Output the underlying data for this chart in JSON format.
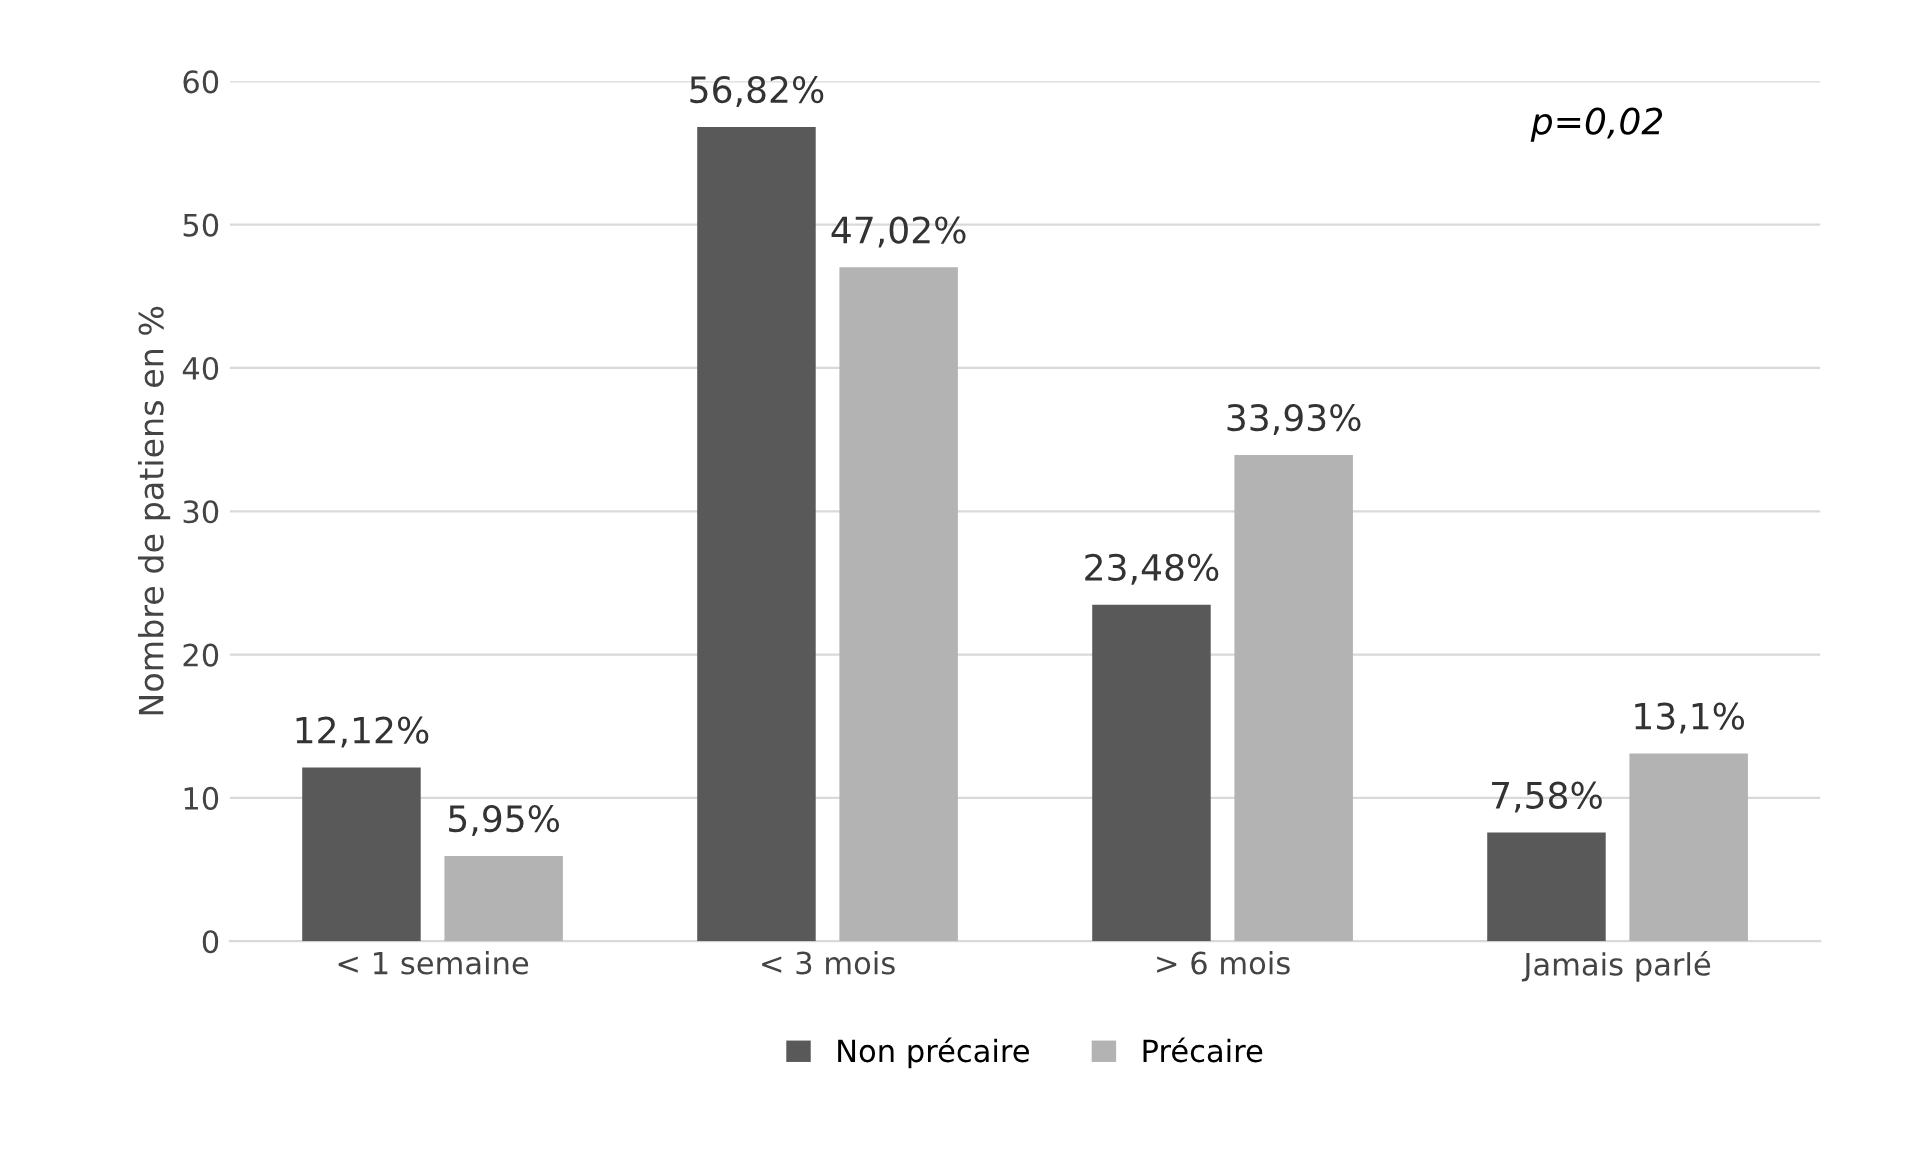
{
  "chart_data": {
    "type": "bar",
    "ylabel": "Nombre de patiens en %",
    "categories": [
      "< 1 semaine",
      "< 3 mois",
      "> 6 mois",
      "Jamais parlé"
    ],
    "series": [
      {
        "name": "Non précaire",
        "color": "#595959",
        "values": [
          12.12,
          56.82,
          23.48,
          7.58
        ],
        "value_labels": [
          "12,12%",
          "56,82%",
          "23,48%",
          "7,58%"
        ]
      },
      {
        "name": "Précaire",
        "color": "#b3b3b3",
        "values": [
          5.95,
          47.02,
          33.93,
          13.1
        ],
        "value_labels": [
          "5,95%",
          "47,02%",
          "33,93%",
          "13,1%"
        ]
      }
    ],
    "ylim": [
      0,
      60
    ],
    "yticks": [
      0,
      10,
      20,
      30,
      40,
      50,
      60
    ],
    "grid": "y",
    "legend": "bottom",
    "annotations": [
      "p=0,02"
    ]
  }
}
